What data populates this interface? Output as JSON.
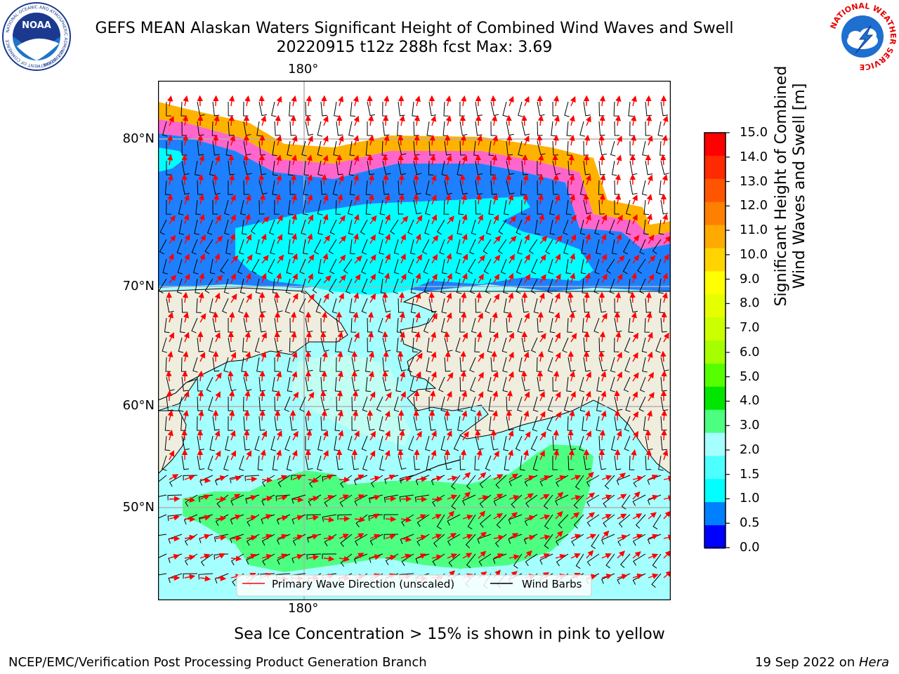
{
  "header": {
    "title_line1": "GEFS MEAN Alaskan Waters Significant Height of Combined Wind Waves and Swell",
    "title_line2": "20220915 t12z 288h fcst   Max: 3.69"
  },
  "logos": {
    "left_name": "NOAA",
    "left_ring_text": "NATIONAL OCEANIC AND ATMOSPHERIC ADMINISTRATION",
    "left_ring_bottom": "U.S. DEPARTMENT OF COMMERCE",
    "right_ring_text": "NATIONAL WEATHER SERVICE"
  },
  "map": {
    "lat_labels": [
      "80°N",
      "70°N",
      "60°N",
      "50°N"
    ],
    "lon_label_top": "180°",
    "lon_label_bottom": "180°",
    "land_color": "#efedde",
    "legend": {
      "wave_label": "Primary Wave Direction (unscaled)",
      "wave_color": "#ff0000",
      "wind_label": "Wind Barbs",
      "wind_color": "#000000"
    }
  },
  "colorbar": {
    "label_line1": "Significant Height of Combined",
    "label_line2": "Wind Waves and Swell [m]",
    "ticks": [
      "15.0",
      "14.0",
      "13.0",
      "12.0",
      "11.0",
      "10.0",
      "9.0",
      "8.0",
      "7.0",
      "6.0",
      "5.0",
      "4.0",
      "3.0",
      "2.0",
      "1.5",
      "1.0",
      "0.5",
      "0.0"
    ],
    "colors": [
      "#ff0000",
      "#ff2a00",
      "#ff5500",
      "#ff7f00",
      "#ffaa00",
      "#ffd400",
      "#ffff00",
      "#e6ff00",
      "#ccff00",
      "#a6ff00",
      "#55ff00",
      "#00e600",
      "#4dff80",
      "#a6ffff",
      "#4dffff",
      "#00ffff",
      "#0080ff",
      "#0000ff"
    ]
  },
  "caption": "Sea Ice Concentration > 15% is shown in pink to yellow",
  "footer": {
    "left": "NCEP/EMC/Verification Post Processing Product Generation Branch",
    "right_prefix": "19 Sep 2022 on ",
    "right_host": "Hera"
  }
}
